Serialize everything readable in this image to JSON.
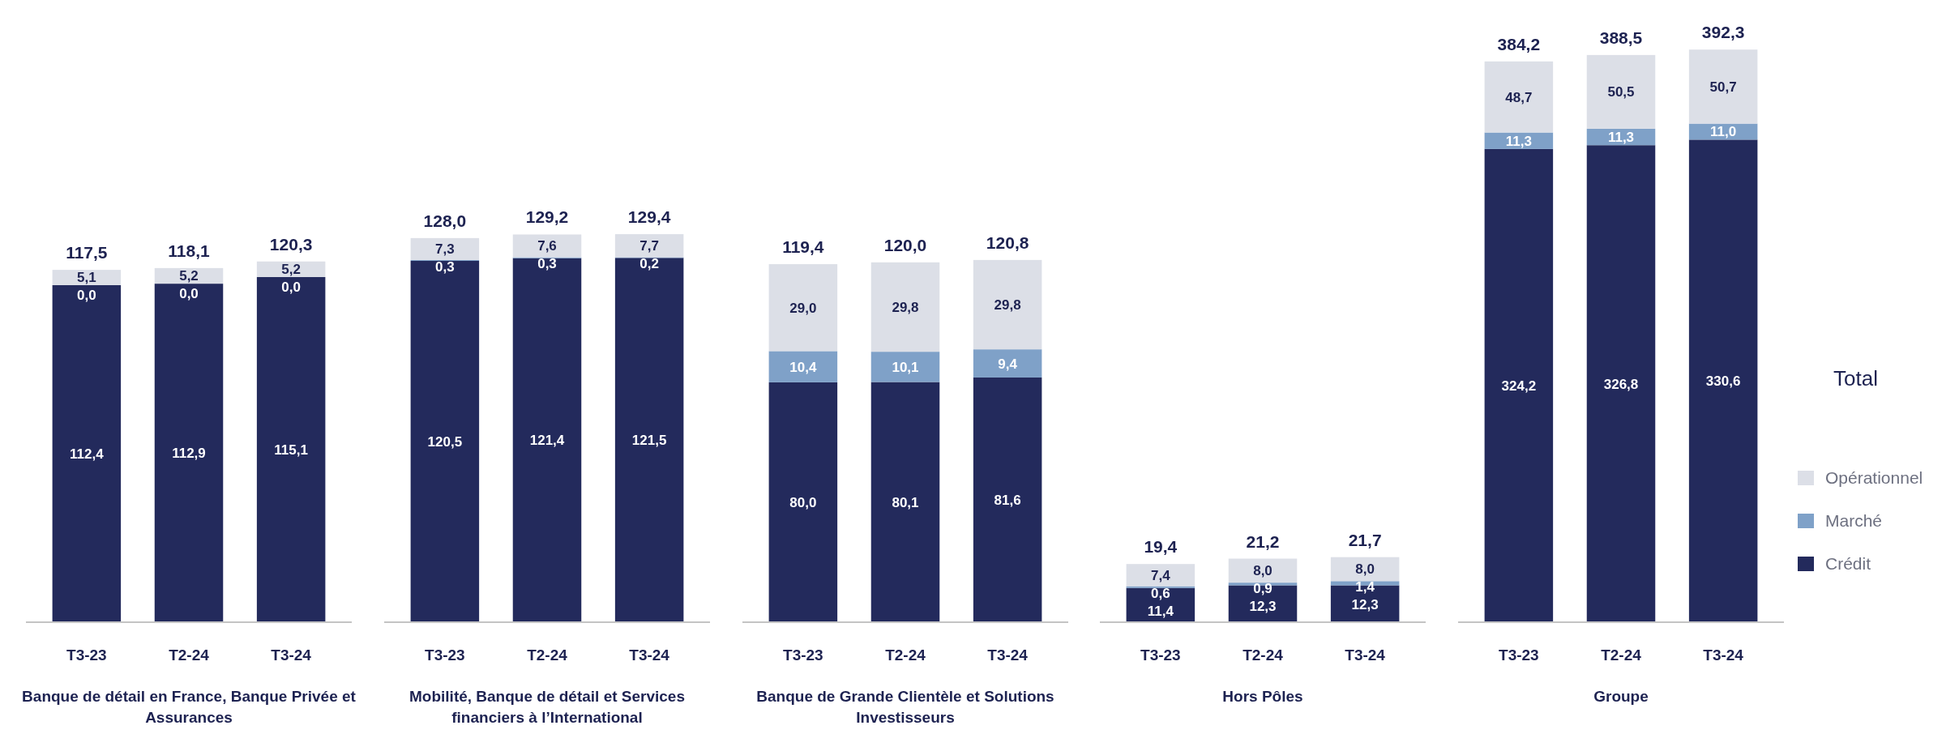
{
  "chart_data": [
    {
      "type": "bar",
      "stacked": true,
      "xlabel": "Banque de détail en France, Banque Privée et Assurances",
      "categories": [
        "T3-23",
        "T2-24",
        "T3-24"
      ],
      "tick_labels": "x",
      "totals": [
        "117,5",
        "118,1",
        "120,3"
      ],
      "series": [
        {
          "color": "#232a5c",
          "values": [
            112.4,
            112.9,
            115.1
          ],
          "value_labels": [
            "112,4",
            "112,9",
            "115,1"
          ]
        },
        {
          "color": "#7fa1c8",
          "values": [
            0.0,
            0.0,
            0.0
          ],
          "value_labels": [
            "0,0",
            "0,0",
            "0,0"
          ]
        },
        {
          "color": "#dcdfe7",
          "values": [
            5.1,
            5.2,
            5.2
          ],
          "value_labels": [
            "5,1",
            "5,2",
            "5,2"
          ]
        }
      ]
    },
    {
      "type": "bar",
      "stacked": true,
      "xlabel": "Mobilité, Banque de détail et Services financiers à l’International",
      "categories": [
        "T3-23",
        "T2-24",
        "T3-24"
      ],
      "tick_labels": "x",
      "totals": [
        "128,0",
        "129,2",
        "129,4"
      ],
      "series": [
        {
          "color": "#232a5c",
          "values": [
            120.5,
            121.4,
            121.5
          ],
          "value_labels": [
            "120,5",
            "121,4",
            "121,5"
          ]
        },
        {
          "color": "#7fa1c8",
          "values": [
            0.3,
            0.3,
            0.2
          ],
          "value_labels": [
            "0,3",
            "0,3",
            "0,2"
          ]
        },
        {
          "color": "#dcdfe7",
          "values": [
            7.3,
            7.6,
            7.7
          ],
          "value_labels": [
            "7,3",
            "7,6",
            "7,7"
          ]
        }
      ]
    },
    {
      "type": "bar",
      "stacked": true,
      "xlabel": "Banque de Grande Clientèle et Solutions Investisseurs",
      "categories": [
        "T3-23",
        "T2-24",
        "T3-24"
      ],
      "tick_labels": "x",
      "totals": [
        "119,4",
        "120,0",
        "120,8"
      ],
      "series": [
        {
          "color": "#232a5c",
          "values": [
            80.0,
            80.1,
            81.6
          ],
          "value_labels": [
            "80,0",
            "80,1",
            "81,6"
          ]
        },
        {
          "color": "#7fa1c8",
          "values": [
            10.4,
            10.1,
            9.4
          ],
          "value_labels": [
            "10,4",
            "10,1",
            "9,4"
          ]
        },
        {
          "color": "#dcdfe7",
          "values": [
            29.0,
            29.8,
            29.8
          ],
          "value_labels": [
            "29,0",
            "29,8",
            "29,8"
          ]
        }
      ]
    },
    {
      "type": "bar",
      "stacked": true,
      "xlabel": "Hors Pôles",
      "categories": [
        "T3-23",
        "T2-24",
        "T3-24"
      ],
      "tick_labels": "x",
      "totals": [
        "19,4",
        "21,2",
        "21,7"
      ],
      "series": [
        {
          "color": "#232a5c",
          "values": [
            11.4,
            12.3,
            12.3
          ],
          "value_labels": [
            "11,4",
            "12,3",
            "12,3"
          ]
        },
        {
          "color": "#7fa1c8",
          "values": [
            0.6,
            0.9,
            1.4
          ],
          "value_labels": [
            "0,6",
            "0,9",
            "1,4"
          ]
        },
        {
          "color": "#dcdfe7",
          "values": [
            7.4,
            8.0,
            8.0
          ],
          "value_labels": [
            "7,4",
            "8,0",
            "8,0"
          ]
        }
      ]
    },
    {
      "type": "bar",
      "stacked": true,
      "xlabel": "Groupe",
      "categories": [
        "T3-23",
        "T2-24",
        "T3-24"
      ],
      "tick_labels": "x",
      "totals": [
        "384,2",
        "388,5",
        "392,3"
      ],
      "legend": "right",
      "legend_title": "Total",
      "series": [
        {
          "name": "Crédit",
          "color": "#232a5c",
          "values": [
            324.2,
            326.8,
            330.6
          ],
          "value_labels": [
            "324,2",
            "326,8",
            "330,6"
          ]
        },
        {
          "name": "Marché",
          "color": "#7fa1c8",
          "values": [
            11.3,
            11.3,
            11.0
          ],
          "value_labels": [
            "11,3",
            "11,3",
            "11,0"
          ]
        },
        {
          "name": "Opérationnel",
          "color": "#dcdfe7",
          "values": [
            48.7,
            50.5,
            50.7
          ],
          "value_labels": [
            "48,7",
            "50,5",
            "50,7"
          ]
        }
      ]
    }
  ]
}
